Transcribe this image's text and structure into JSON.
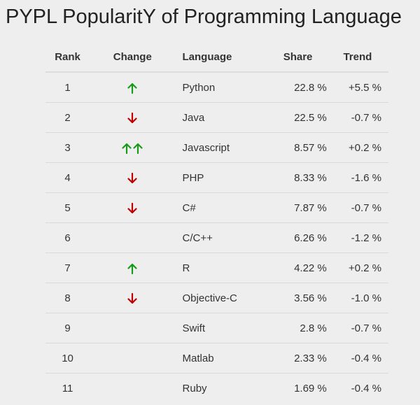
{
  "title": "PYPL PopularitY of Programming Language",
  "headers": {
    "rank": "Rank",
    "change": "Change",
    "language": "Language",
    "share": "Share",
    "trend": "Trend"
  },
  "colors": {
    "up": "#1a9a1a",
    "down": "#c00000"
  },
  "rows": [
    {
      "rank": "1",
      "change": [
        "up"
      ],
      "language": "Python",
      "share": "22.8 %",
      "trend": "+5.5 %"
    },
    {
      "rank": "2",
      "change": [
        "down"
      ],
      "language": "Java",
      "share": "22.5 %",
      "trend": "-0.7 %"
    },
    {
      "rank": "3",
      "change": [
        "up",
        "up"
      ],
      "language": "Javascript",
      "share": "8.57 %",
      "trend": "+0.2 %"
    },
    {
      "rank": "4",
      "change": [
        "down"
      ],
      "language": "PHP",
      "share": "8.33 %",
      "trend": "-1.6 %"
    },
    {
      "rank": "5",
      "change": [
        "down"
      ],
      "language": "C#",
      "share": "7.87 %",
      "trend": "-0.7 %"
    },
    {
      "rank": "6",
      "change": [],
      "language": "C/C++",
      "share": "6.26 %",
      "trend": "-1.2 %"
    },
    {
      "rank": "7",
      "change": [
        "up"
      ],
      "language": "R",
      "share": "4.22 %",
      "trend": "+0.2 %"
    },
    {
      "rank": "8",
      "change": [
        "down"
      ],
      "language": "Objective-C",
      "share": "3.56 %",
      "trend": "-1.0 %"
    },
    {
      "rank": "9",
      "change": [],
      "language": "Swift",
      "share": "2.8 %",
      "trend": "-0.7 %"
    },
    {
      "rank": "10",
      "change": [],
      "language": "Matlab",
      "share": "2.33 %",
      "trend": "-0.4 %"
    },
    {
      "rank": "11",
      "change": [],
      "language": "Ruby",
      "share": "1.69 %",
      "trend": "-0.4 %"
    }
  ]
}
